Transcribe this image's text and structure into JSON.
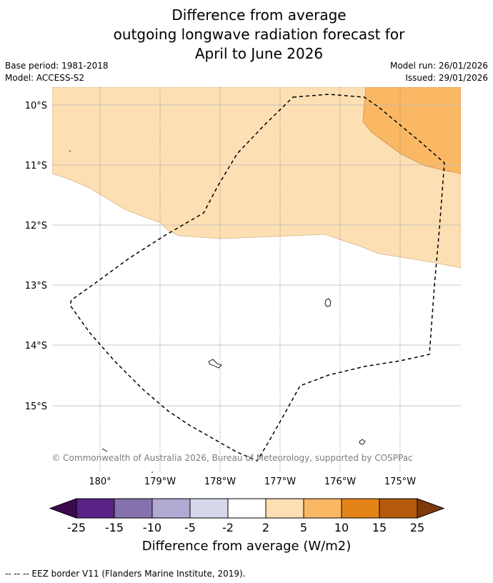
{
  "title": {
    "line1": "Difference from average",
    "line2": "outgoing longwave radiation forecast for",
    "line3": "April to June 2026"
  },
  "meta": {
    "base_period": "Base period: 1981-2018",
    "model": "Model: ACCESS-S2",
    "model_run": "Model run: 26/01/2026",
    "issued": "Issued: 29/01/2026"
  },
  "map": {
    "lat_labels": [
      "10°S",
      "11°S",
      "12°S",
      "13°S",
      "14°S",
      "15°S"
    ],
    "lon_labels": [
      "180°",
      "179°W",
      "178°W",
      "177°W",
      "176°W",
      "175°W"
    ],
    "copyright": "© Commonwealth of Australia 2026, Bureau of Meteorology, supported by COSPPac",
    "fill_colors": {
      "light": "#FDDFB4",
      "medium": "#FBB864"
    }
  },
  "colorbar": {
    "label": "Difference from average (W/m2)",
    "ticks": [
      "-25",
      "-15",
      "-10",
      "-5",
      "-2",
      "2",
      "5",
      "10",
      "15",
      "25"
    ],
    "colors": [
      "#3B0A4F",
      "#5A2286",
      "#8471AD",
      "#B2AAD3",
      "#D7D8EB",
      "#FFFFFF",
      "#FDDFB4",
      "#FBB864",
      "#E48418",
      "#B45A0A",
      "#7E3A0C"
    ]
  },
  "footer": {
    "legend": "--  --  -- EEZ border V11 (Flanders Marine Institute, 2019)."
  }
}
